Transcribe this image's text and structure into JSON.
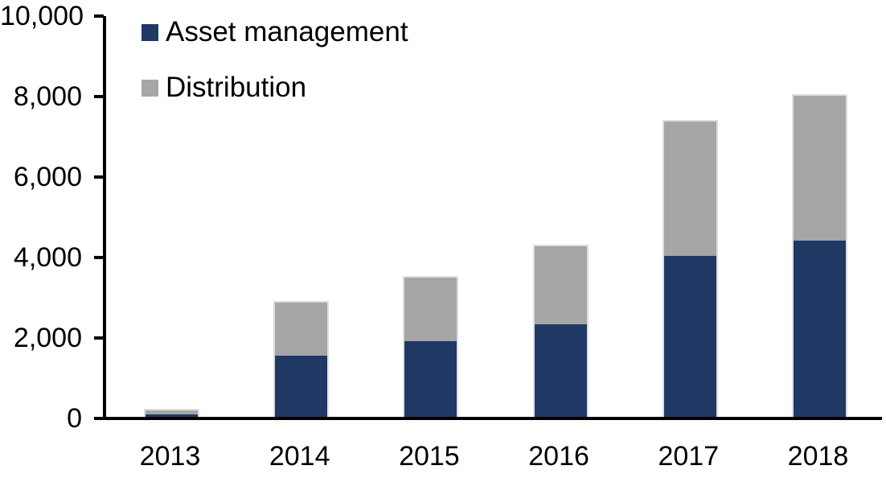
{
  "page": {
    "background_color": "#FFFFFF",
    "text_color": "#000000",
    "axis_color": "#000000",
    "bar_edge_color": "#DEDEDE"
  },
  "chart_data": {
    "type": "bar",
    "stacked": true,
    "title": "",
    "xlabel": "",
    "ylabel": "",
    "categories": [
      "2013",
      "2014",
      "2015",
      "2016",
      "2017",
      "2018"
    ],
    "series": [
      {
        "name": "Asset management",
        "color": "#1F3864",
        "values": [
          90,
          1550,
          1910,
          2330,
          4030,
          4410
        ]
      },
      {
        "name": "Distribution",
        "color": "#A6A6A6",
        "values": [
          100,
          1320,
          1580,
          1930,
          3340,
          3600
        ]
      }
    ],
    "totals": [
      190,
      2870,
      3490,
      4260,
      7370,
      8010
    ],
    "ylim": [
      0,
      10000
    ],
    "y_ticks": [
      {
        "value": 0,
        "label": "0"
      },
      {
        "value": 2000,
        "label": "2,000"
      },
      {
        "value": 4000,
        "label": "4,000"
      },
      {
        "value": 6000,
        "label": "6,000"
      },
      {
        "value": 8000,
        "label": "8,000"
      },
      {
        "value": 10000,
        "label": "10,000"
      }
    ],
    "grid": false,
    "legend_position": "top-left"
  }
}
